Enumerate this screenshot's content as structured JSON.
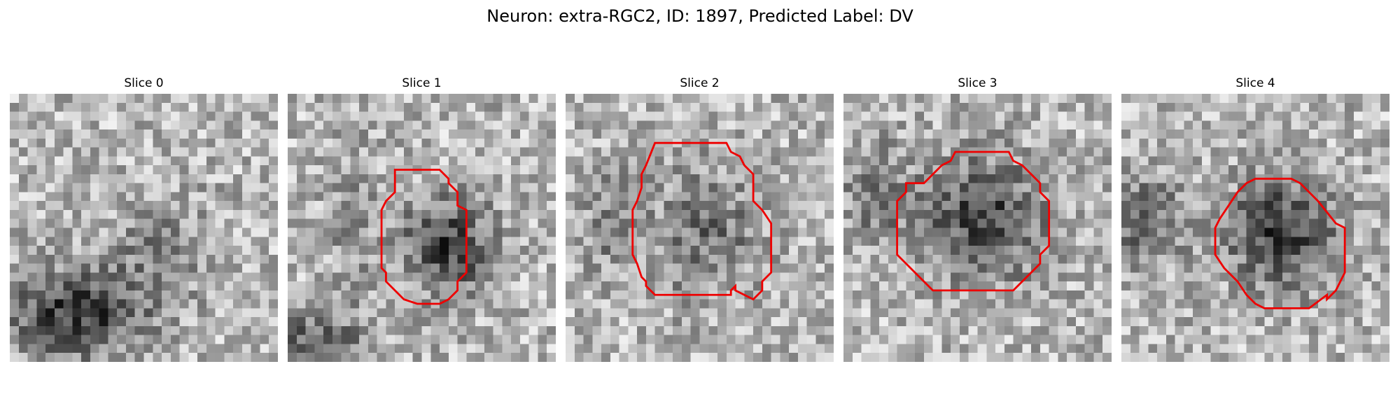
{
  "figure": {
    "title": "Neuron: extra-RGC2, ID: 1897, Predicted Label: DV",
    "panels": [
      {
        "title": "Slice 0",
        "has_contour": false,
        "dark_blobs": [
          [
            0.24,
            0.8,
            0.32,
            0.2,
            0.85
          ],
          [
            0.55,
            0.55,
            0.25,
            0.25,
            0.3
          ]
        ]
      },
      {
        "title": "Slice 1",
        "has_contour": true,
        "dark_blobs": [
          [
            0.58,
            0.55,
            0.21,
            0.22,
            0.8
          ],
          [
            0.05,
            0.9,
            0.3,
            0.15,
            0.5
          ],
          [
            0.22,
            0.45,
            0.12,
            0.35,
            0.25
          ]
        ]
      },
      {
        "title": "Slice 2",
        "has_contour": true,
        "dark_blobs": [
          [
            0.5,
            0.5,
            0.25,
            0.3,
            0.45
          ],
          [
            0.15,
            0.45,
            0.12,
            0.25,
            0.35
          ]
        ]
      },
      {
        "title": "Slice 3",
        "has_contour": true,
        "dark_blobs": [
          [
            0.5,
            0.45,
            0.3,
            0.28,
            0.75
          ],
          [
            0.1,
            0.35,
            0.15,
            0.25,
            0.35
          ]
        ]
      },
      {
        "title": "Slice 4",
        "has_contour": true,
        "dark_blobs": [
          [
            0.58,
            0.5,
            0.25,
            0.25,
            0.8
          ],
          [
            0.05,
            0.45,
            0.2,
            0.2,
            0.55
          ]
        ]
      }
    ],
    "contour_color": "#ee0000",
    "colormap": "gray"
  }
}
